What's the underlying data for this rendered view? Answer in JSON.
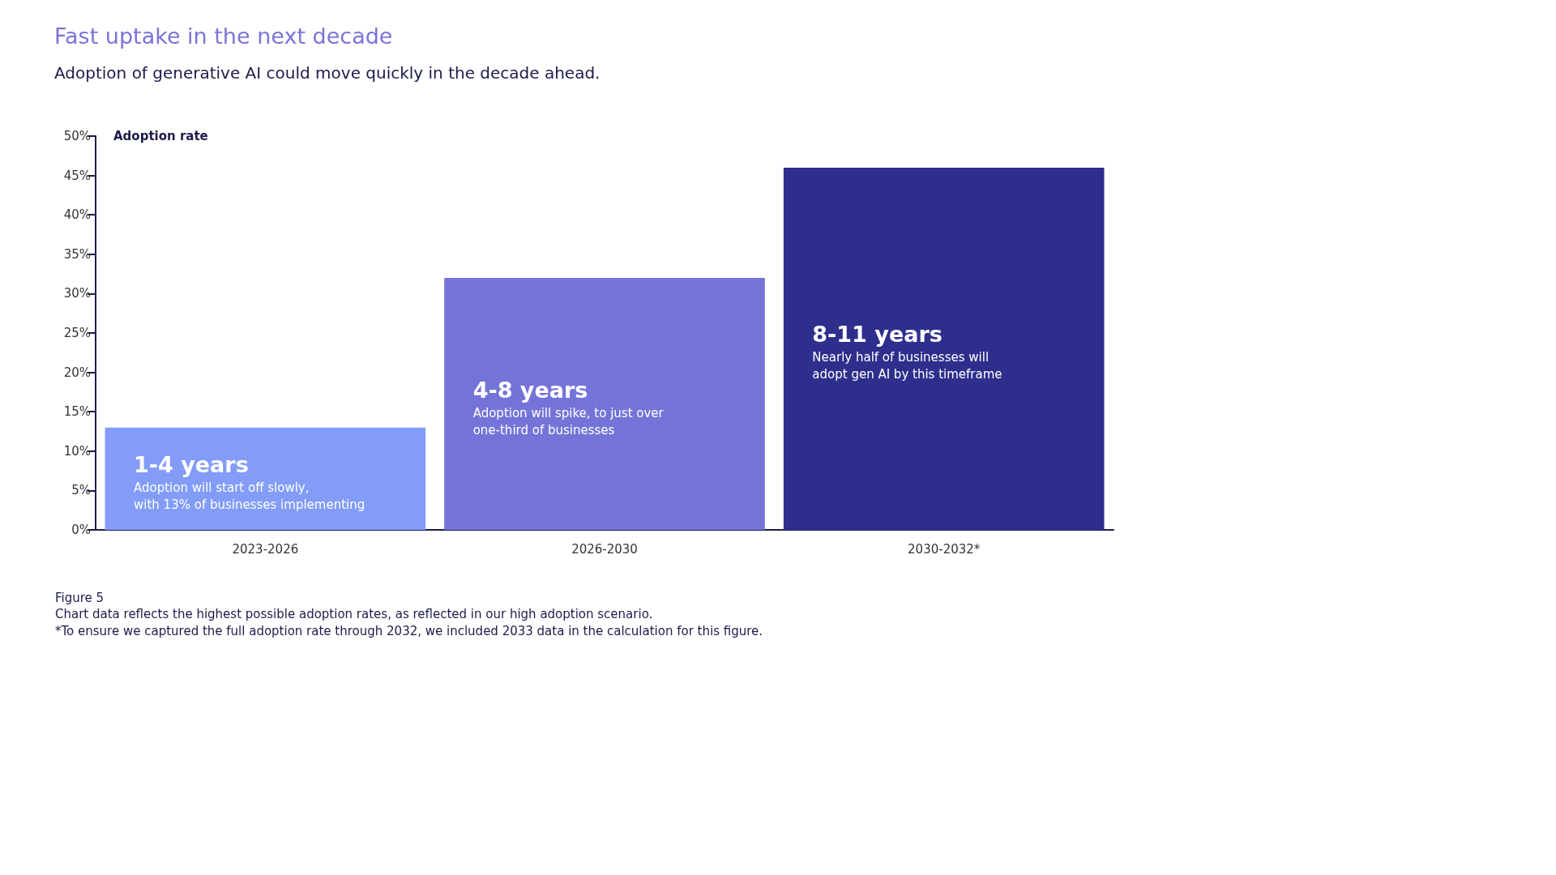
{
  "chart_data": {
    "type": "bar",
    "title": "Fast uptake in the next decade",
    "subtitle": "Adoption of generative AI could move quickly in the decade ahead.",
    "ylabel": "Adoption rate",
    "categories": [
      "2023-2026",
      "2026-2030",
      "2030-2032*"
    ],
    "values": [
      13,
      32,
      46
    ],
    "colors": [
      "#829cf8",
      "#7474d8",
      "#2e2f8c"
    ],
    "ylim": [
      0,
      50
    ],
    "yticks": [
      {
        "value": 0,
        "label": "0%"
      },
      {
        "value": 5,
        "label": "5%"
      },
      {
        "value": 10,
        "label": "10%"
      },
      {
        "value": 15,
        "label": "15%"
      },
      {
        "value": 20,
        "label": "20%"
      },
      {
        "value": 25,
        "label": "25%"
      },
      {
        "value": 30,
        "label": "30%"
      },
      {
        "value": 35,
        "label": "35%"
      },
      {
        "value": 40,
        "label": "40%"
      },
      {
        "value": 45,
        "label": "45%"
      },
      {
        "value": 50,
        "label": "50%"
      }
    ],
    "grid": false,
    "annotations": [
      "1-4 years",
      "Adoption will start off slowly,\nwith 13% of businesses implementing",
      "4-8 years",
      "Adoption will spike, to just over\none-third of businesses",
      "8-11 years",
      "Nearly half of businesses will\nadopt gen AI by this timeframe",
      "Figure 5",
      "Chart data reflects the highest possible adoption rates, as reflected in our high adoption scenario.",
      "*To ensure we captured the full adoption rate through 2032, we included 2033 data in the calculation for this figure."
    ]
  }
}
